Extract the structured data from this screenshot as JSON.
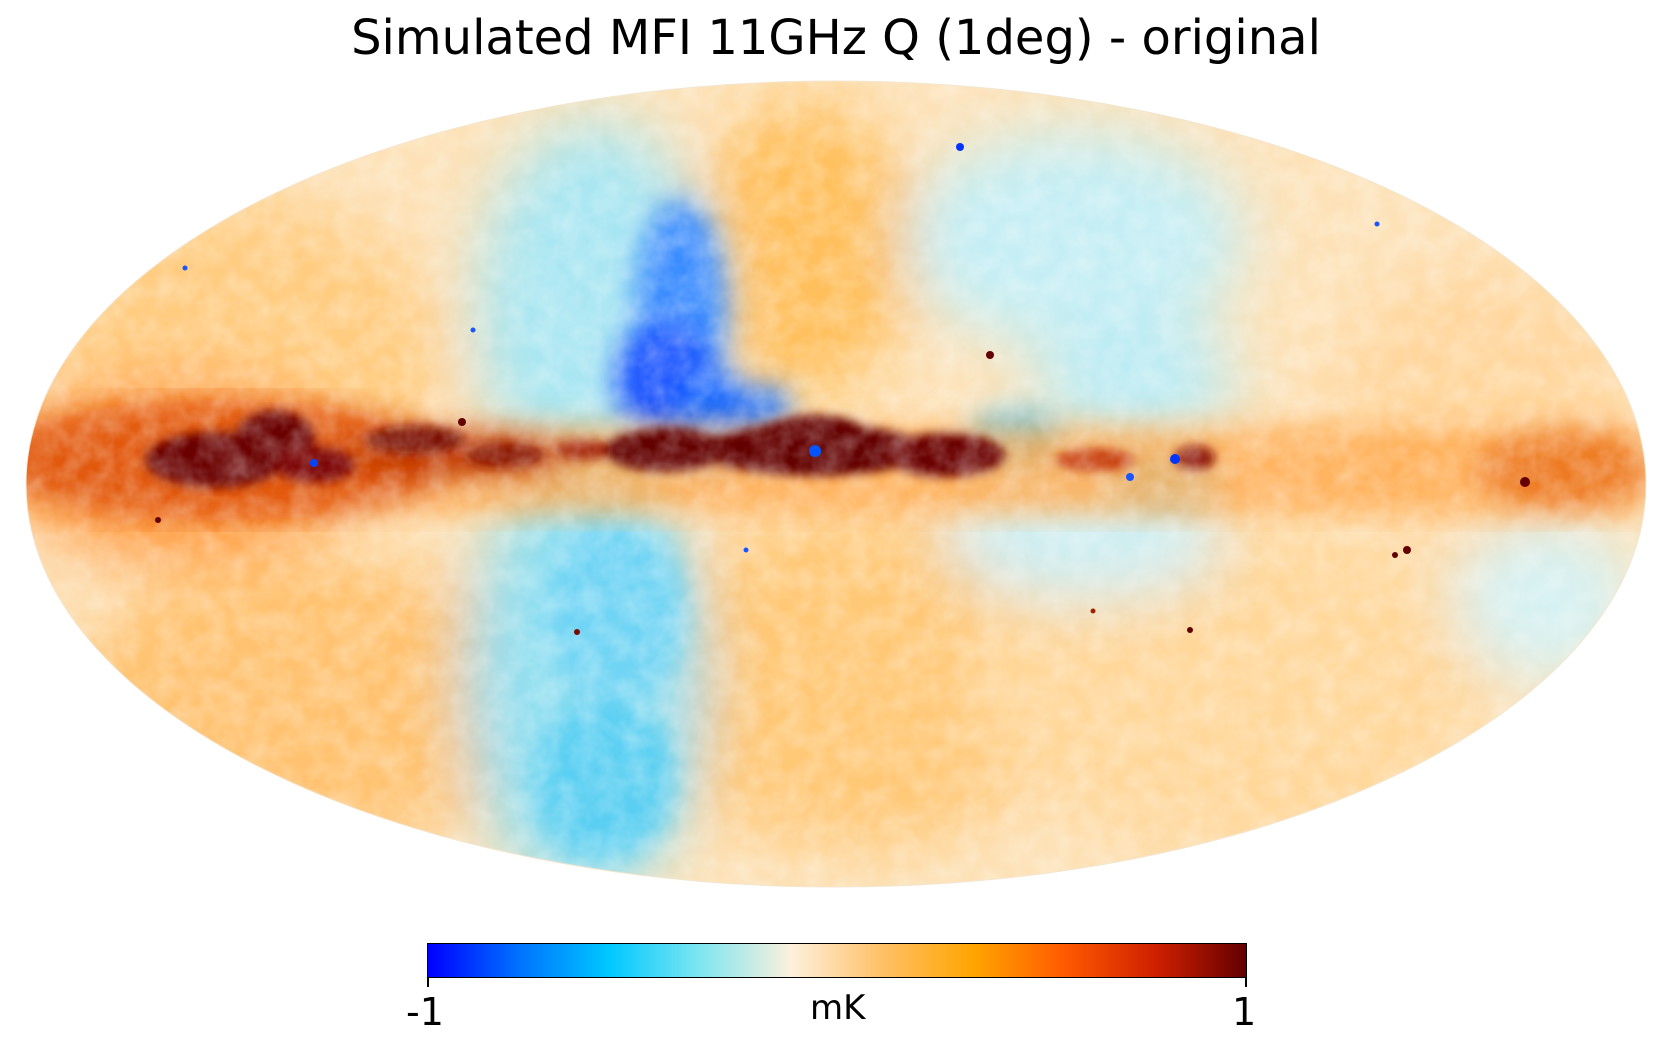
{
  "title": "Simulated MFI 11GHz Q (1deg) - original",
  "map": {
    "projection": "Mollweide",
    "coordinates": "Galactic"
  },
  "colorbar": {
    "min_label": "-1",
    "max_label": "1",
    "unit": "mK",
    "min": -1,
    "max": 1,
    "colors": [
      "#0000ff",
      "#0072ff",
      "#00c8ff",
      "#7fe6f0",
      "#fdf0dc",
      "#ffc066",
      "#ffa500",
      "#ff5a00",
      "#d02000",
      "#630000"
    ]
  }
}
